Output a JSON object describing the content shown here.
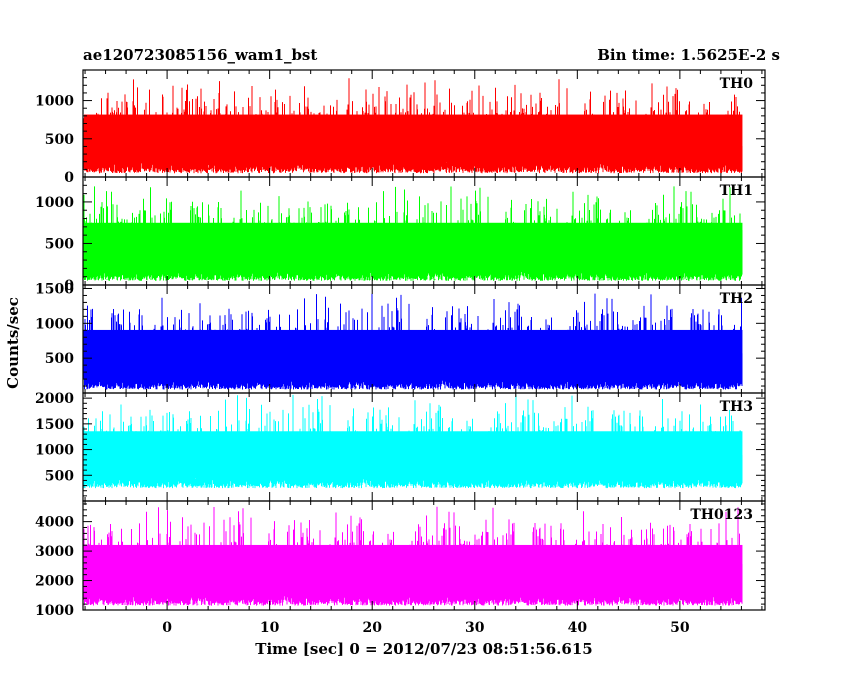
{
  "chart_data": {
    "type": "line",
    "title_left": "ae120723085156_wam1_bst",
    "title_right": "Bin time: 1.5625E-2 s",
    "xlabel": "Time [sec] 0 = 2012/07/23 08:51:56.615",
    "ylabel": "Counts/sec",
    "xlim": [
      -8.2,
      58.3
    ],
    "x_data_range": [
      -8.1,
      56.1
    ],
    "x_ticks": [
      0,
      10,
      20,
      30,
      40,
      50
    ],
    "grid": false,
    "panels": [
      {
        "name": "TH0",
        "color": "#ff0000",
        "ylim": [
          0,
          1400
        ],
        "y_ticks": [
          0,
          500,
          1000
        ],
        "baseline": 50,
        "mean": 610,
        "spread": 230,
        "peak_max": 1390
      },
      {
        "name": "TH1",
        "color": "#00ff00",
        "ylim": [
          0,
          1300
        ],
        "y_ticks": [
          0,
          500,
          1000
        ],
        "baseline": 50,
        "mean": 560,
        "spread": 210,
        "peak_max": 1290
      },
      {
        "name": "TH2",
        "color": "#0000ff",
        "ylim": [
          0,
          1550
        ],
        "y_ticks": [
          500,
          1000,
          1500
        ],
        "baseline": 50,
        "mean": 680,
        "spread": 250,
        "peak_max": 1520
      },
      {
        "name": "TH3",
        "color": "#00ffff",
        "ylim": [
          0,
          2100
        ],
        "y_ticks": [
          500,
          1000,
          1500,
          2000
        ],
        "baseline": 250,
        "mean": 1050,
        "spread": 340,
        "peak_max": 2080
      },
      {
        "name": "TH0123",
        "color": "#ff00ff",
        "ylim": [
          1000,
          4700
        ],
        "y_ticks": [
          1000,
          2000,
          3000,
          4000
        ],
        "baseline": 1150,
        "mean": 2650,
        "spread": 620,
        "peak_max": 4650
      }
    ]
  }
}
